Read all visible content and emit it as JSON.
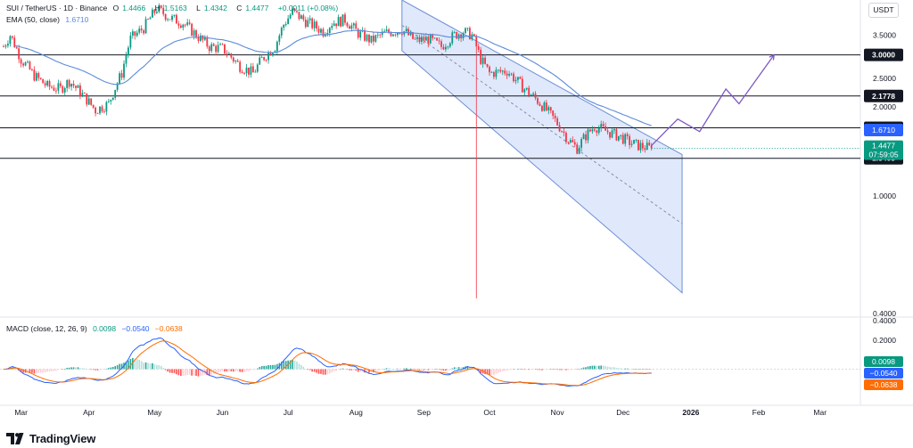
{
  "header": {
    "title": "SUI / TetherUS · 1D · Binance",
    "open_label": "O",
    "open": "1.4466",
    "high_label": "H",
    "high": "1.5163",
    "low_label": "L",
    "low": "1.4342",
    "close_label": "C",
    "close": "1.4477",
    "change": "+0.0011 (+0.08%)",
    "ema_label": "EMA (50, close)",
    "ema_value": "1.6710",
    "macd_label": "MACD (close, 12, 26, 9)",
    "macd_hist": "0.0098",
    "macd_line": "−0.0540",
    "macd_signal": "−0.0638"
  },
  "currency": "USDT",
  "brand": {
    "name": "TradingView"
  },
  "colors": {
    "up": "#089981",
    "down": "#f23645",
    "ema": "#5b8bd9",
    "channel_fill": "#c7d6f7",
    "channel_stroke": "#6b8fd6",
    "projection": "#7e57c2",
    "macd_line": "#2962ff",
    "signal_line": "#ff6d00",
    "level_line": "#131722"
  },
  "chart_data": {
    "type": "candlestick",
    "symbol": "SUI/USDT",
    "timeframe": "1D",
    "exchange": "Binance",
    "y_scale": "log",
    "ylim": [
      0.4,
      4.6
    ],
    "y_ticks": [
      {
        "value": 0.4,
        "label": "0.4000"
      },
      {
        "value": 1.0,
        "label": "1.0000"
      },
      {
        "value": 1.5,
        "label": "1.5000"
      },
      {
        "value": 2.0,
        "label": "2.0000"
      },
      {
        "value": 2.5,
        "label": "2.5000"
      },
      {
        "value": 3.5,
        "label": "3.5000"
      }
    ],
    "x_ticks": [
      "Mar",
      "Apr",
      "May",
      "Jun",
      "Jul",
      "Aug",
      "Sep",
      "Oct",
      "Nov",
      "Dec",
      "2026",
      "Feb",
      "Mar"
    ],
    "price_path": [
      [
        0,
        3.2
      ],
      [
        3,
        3.5
      ],
      [
        8,
        2.9
      ],
      [
        14,
        2.55
      ],
      [
        20,
        2.35
      ],
      [
        26,
        2.3
      ],
      [
        30,
        2.45
      ],
      [
        36,
        2.2
      ],
      [
        42,
        1.95
      ],
      [
        48,
        2.05
      ],
      [
        54,
        2.6
      ],
      [
        58,
        3.4
      ],
      [
        64,
        3.7
      ],
      [
        70,
        4.3
      ],
      [
        76,
        4.0
      ],
      [
        82,
        3.85
      ],
      [
        88,
        3.5
      ],
      [
        94,
        3.2
      ],
      [
        100,
        3.15
      ],
      [
        108,
        2.75
      ],
      [
        114,
        2.6
      ],
      [
        118,
        2.9
      ],
      [
        124,
        3.2
      ],
      [
        128,
        3.8
      ],
      [
        132,
        4.2
      ],
      [
        138,
        3.9
      ],
      [
        146,
        3.6
      ],
      [
        150,
        3.85
      ],
      [
        156,
        3.95
      ],
      [
        162,
        3.55
      ],
      [
        168,
        3.35
      ],
      [
        174,
        3.55
      ],
      [
        182,
        3.65
      ],
      [
        188,
        3.35
      ],
      [
        194,
        3.4
      ],
      [
        200,
        3.2
      ],
      [
        206,
        3.5
      ],
      [
        210,
        3.6
      ],
      [
        214,
        3.5
      ],
      [
        216,
        3.2
      ],
      [
        218,
        2.9
      ],
      [
        222,
        2.6
      ],
      [
        230,
        2.65
      ],
      [
        238,
        2.3
      ],
      [
        244,
        2.1
      ],
      [
        252,
        1.8
      ],
      [
        258,
        1.55
      ],
      [
        262,
        1.45
      ],
      [
        266,
        1.6
      ],
      [
        270,
        1.72
      ],
      [
        276,
        1.65
      ],
      [
        282,
        1.58
      ],
      [
        286,
        1.52
      ],
      [
        290,
        1.48
      ],
      [
        296,
        1.4477
      ]
    ],
    "ema_label": "EMA (50, close)",
    "ema_current": 1.671,
    "wick_low": [
      216,
      0.45
    ],
    "horizontal_levels": [
      {
        "value": 3.0,
        "label": "3.0000"
      },
      {
        "value": 2.1778,
        "label": "2.1778"
      },
      {
        "value": 1.7,
        "label": "1.7000"
      },
      {
        "value": 1.3403,
        "label": "1.3403"
      }
    ],
    "price_badges": [
      {
        "value": 1.671,
        "label": "1.6710",
        "kind": "ema"
      },
      {
        "value": 1.4477,
        "label": "1.4477",
        "countdown": "07:59:05",
        "kind": "last"
      }
    ],
    "descending_channel": {
      "upper": [
        [
          182,
          4.6
        ],
        [
          310,
          1.38
        ]
      ],
      "lower": [
        [
          182,
          3.1
        ],
        [
          310,
          0.47
        ]
      ]
    },
    "projection_path": [
      [
        296,
        1.48
      ],
      [
        308,
        1.82
      ],
      [
        318,
        1.65
      ],
      [
        330,
        2.3
      ],
      [
        336,
        2.05
      ],
      [
        352,
        3.0
      ]
    ],
    "macd": {
      "label": "MACD (close, 12, 26, 9)",
      "histogram_current": 0.0098,
      "macd_current": -0.054,
      "signal_current": -0.0638,
      "labels": [
        "0.0098",
        "−0.0540",
        "−0.0638"
      ]
    }
  }
}
